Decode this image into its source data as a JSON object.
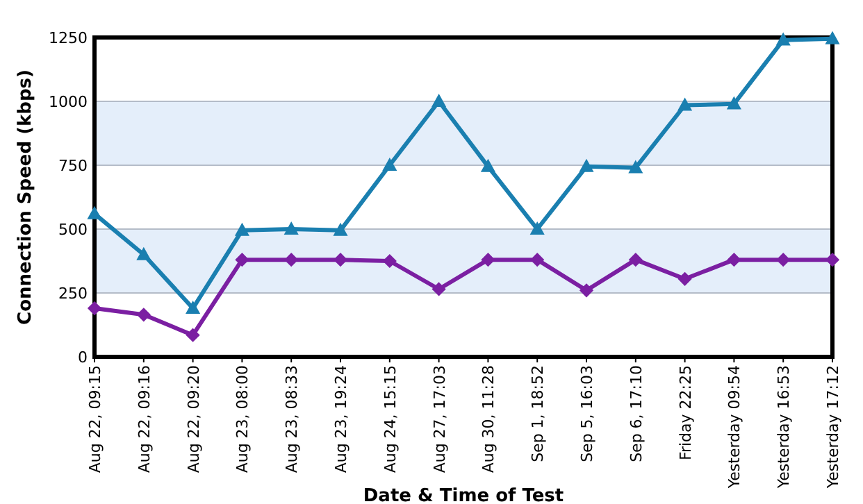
{
  "chart_data": {
    "type": "line",
    "xlabel": "Date & Time of Test",
    "ylabel": "Connection Speed (kbps)",
    "categories": [
      "Aug 22, 09:15",
      "Aug 22, 09:16",
      "Aug 22, 09:20",
      "Aug 23, 08:00",
      "Aug 23, 08:33",
      "Aug 23, 19:24",
      "Aug 24, 15:15",
      "Aug 27, 17:03",
      "Aug 30, 11:28",
      "Sep 1, 18:52",
      "Sep 5, 16:03",
      "Sep 6, 17:10",
      "Friday 22:25",
      "Yesterday 09:54",
      "Yesterday 16:53",
      "Yesterday 17:12"
    ],
    "series": [
      {
        "color": "#1a7fb0",
        "marker": "triangle",
        "values": [
          560,
          400,
          190,
          495,
          500,
          495,
          750,
          1000,
          745,
          500,
          745,
          740,
          985,
          990,
          1240,
          1245
        ]
      },
      {
        "color": "#7b1fa2",
        "marker": "diamond",
        "values": [
          190,
          165,
          85,
          380,
          380,
          380,
          375,
          265,
          380,
          380,
          260,
          380,
          305,
          380,
          380,
          380
        ]
      }
    ],
    "ylim": [
      0,
      1250
    ],
    "yticks": [
      0,
      250,
      500,
      750,
      1000,
      1250
    ],
    "grid": "y",
    "line_style": "solid",
    "bands": [
      {
        "axis": "y",
        "from": 250,
        "to": 500,
        "color": "#e4eefa"
      },
      {
        "axis": "y",
        "from": 750,
        "to": 1000,
        "color": "#e4eefa"
      }
    ]
  }
}
